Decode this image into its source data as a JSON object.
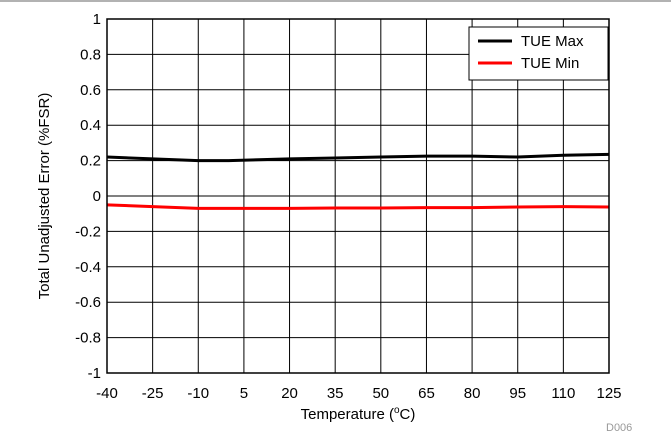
{
  "chart_data": {
    "type": "line",
    "xlabel": "Temperature (",
    "xlabel_sup": "o",
    "xlabel_unit": "C)",
    "ylabel": "Total Unadjusted Error (%FSR)",
    "x": [
      -40,
      -25,
      -10,
      5,
      20,
      35,
      50,
      65,
      80,
      95,
      110,
      125
    ],
    "x_tick_labels": [
      "-40",
      "-25",
      "-10",
      "5",
      "20",
      "35",
      "50",
      "65",
      "80",
      "95",
      "110",
      "125"
    ],
    "xlim": [
      -40,
      125
    ],
    "ylim": [
      -1,
      1
    ],
    "y_ticks": [
      1,
      0.8,
      0.6,
      0.4,
      0.2,
      0,
      -0.2,
      -0.4,
      -0.6,
      -0.8,
      -1
    ],
    "y_tick_labels": [
      "1",
      "0.8",
      "0.6",
      "0.4",
      "0.2",
      "0",
      "-0.2",
      "-0.4",
      "-0.6",
      "-0.8",
      "-1"
    ],
    "grid": true,
    "legend_position": "top-right",
    "series": [
      {
        "name": "TUE Max",
        "color": "#000000",
        "points": [
          [
            -40,
            0.22
          ],
          [
            -25,
            0.21
          ],
          [
            -10,
            0.2
          ],
          [
            0,
            0.2
          ],
          [
            20,
            0.21
          ],
          [
            35,
            0.215
          ],
          [
            50,
            0.22
          ],
          [
            65,
            0.225
          ],
          [
            80,
            0.225
          ],
          [
            95,
            0.22
          ],
          [
            110,
            0.23
          ],
          [
            125,
            0.235
          ]
        ]
      },
      {
        "name": "TUE Min",
        "color": "#ff0000",
        "points": [
          [
            -40,
            -0.05
          ],
          [
            -25,
            -0.06
          ],
          [
            -10,
            -0.07
          ],
          [
            5,
            -0.07
          ],
          [
            20,
            -0.07
          ],
          [
            35,
            -0.068
          ],
          [
            50,
            -0.068
          ],
          [
            65,
            -0.066
          ],
          [
            80,
            -0.066
          ],
          [
            95,
            -0.062
          ],
          [
            110,
            -0.06
          ],
          [
            125,
            -0.062
          ]
        ]
      }
    ]
  },
  "figure_code": "D006"
}
